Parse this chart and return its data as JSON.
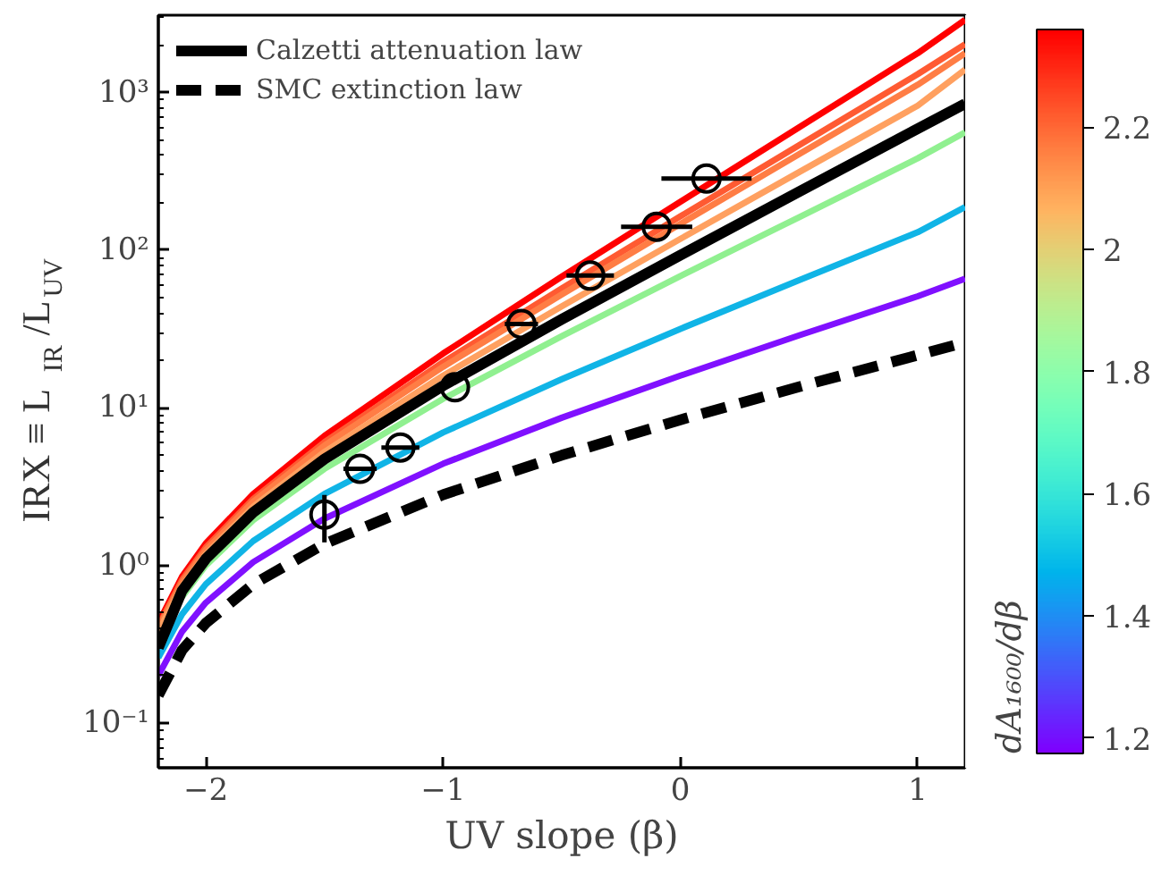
{
  "chart_data": {
    "type": "line",
    "xlabel": "UV slope (β)",
    "ylabel": "IRX ≡ L$_{IR}$/L$_{UV}$",
    "clabel": "dA₁₆₀₀/dβ",
    "x": [
      -2.2,
      -2.1,
      -2.0,
      -1.8,
      -1.5,
      -1.0,
      -0.5,
      0.0,
      0.5,
      1.0,
      1.2
    ],
    "xlim": [
      -2.2,
      1.2
    ],
    "xticks": [
      -2,
      -1,
      0,
      1
    ],
    "ylim": [
      0.052,
      3100
    ],
    "yticks": [
      {
        "value": 0.1,
        "label": "10⁻¹"
      },
      {
        "value": 1,
        "label": "10⁰"
      },
      {
        "value": 10,
        "label": "10¹"
      },
      {
        "value": 100,
        "label": "10²"
      },
      {
        "value": 1000,
        "label": "10³"
      }
    ],
    "log": "y",
    "grid": false,
    "legend": "top left",
    "marker": "none",
    "clim": [
      1.175,
      2.36
    ],
    "cticks": [
      1.2,
      1.4,
      1.6,
      1.8,
      2.0,
      2.2
    ],
    "series": [
      {
        "color": "#ff0000",
        "values": [
          0.43,
          0.85,
          1.38,
          2.84,
          6.64,
          22.1,
          68,
          203,
          602,
          1779,
          2900
        ]
      },
      {
        "color": "#ff5a32",
        "values": [
          0.41,
          0.81,
          1.3,
          2.64,
          6.05,
          19.5,
          57.3,
          164,
          463,
          1309,
          2030
        ]
      },
      {
        "color": "#ff7d45",
        "values": [
          0.4,
          0.78,
          1.25,
          2.54,
          5.77,
          18.2,
          52.4,
          147,
          407,
          1122,
          1780
        ]
      },
      {
        "color": "#ffa060",
        "values": [
          0.38,
          0.74,
          1.18,
          2.36,
          5.25,
          16.0,
          44.1,
          118,
          313,
          826,
          1400
        ]
      },
      {
        "color": "#90f090",
        "values": [
          null,
          0.63,
          1.0,
          1.94,
          4.1,
          11.4,
          28.5,
          68.6,
          162,
          383,
          560
        ]
      },
      {
        "color": "#10b4e6",
        "values": [
          0.26,
          0.49,
          0.76,
          1.43,
          2.84,
          6.97,
          15.2,
          31.7,
          64.5,
          130,
          188
        ]
      },
      {
        "color": "#8010ff",
        "values": [
          0.2,
          0.38,
          0.58,
          1.05,
          1.98,
          4.42,
          8.65,
          16.0,
          28.8,
          51,
          66
        ]
      },
      {
        "name": "Calzetti attenuation law",
        "color": "#000000",
        "values": [
          0.3,
          0.69,
          1.1,
          2.17,
          4.73,
          13.8,
          36.4,
          93,
          235,
          590,
          850
        ]
      },
      {
        "name": "SMC extinction law",
        "color": "#000000",
        "line_style": "dashed",
        "values": [
          0.15,
          0.29,
          0.43,
          0.76,
          1.37,
          2.81,
          5.0,
          8.4,
          13.6,
          21.6,
          26
        ]
      },
      {
        "type": "scatter",
        "marker": "circle",
        "color": "#000000",
        "x": [
          -1.5,
          -1.35,
          -1.18,
          -0.95,
          -0.67,
          -0.38,
          -0.1,
          0.11
        ],
        "values": [
          2.1,
          4.1,
          5.6,
          13.5,
          34,
          69,
          141,
          285
        ],
        "errors": [
          [
            1.4,
            2.8
          ],
          null,
          null,
          null,
          null,
          null,
          null,
          null
        ],
        "xerrors": [
          null,
          0.07,
          0.08,
          null,
          0.07,
          0.1,
          0.15,
          0.19
        ]
      }
    ]
  }
}
